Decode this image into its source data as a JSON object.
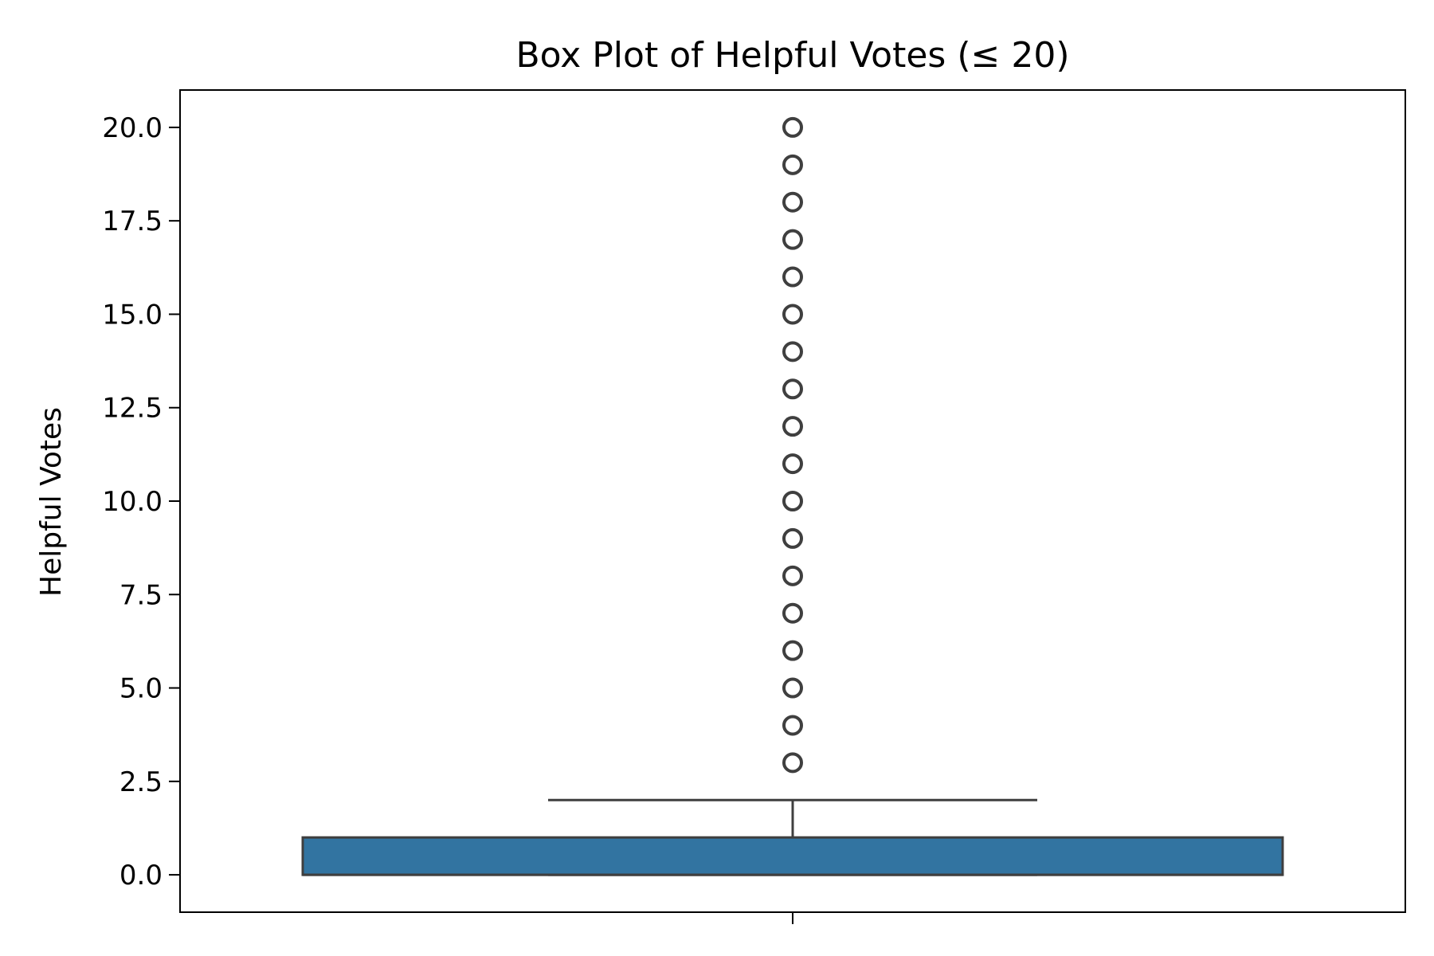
{
  "chart_data": {
    "type": "box",
    "title": "Box Plot of Helpful Votes (≤ 20)",
    "xlabel": "",
    "ylabel": "Helpful Votes",
    "ylim": [
      -1,
      21
    ],
    "yticks": [
      0.0,
      2.5,
      5.0,
      7.5,
      10.0,
      12.5,
      15.0,
      17.5,
      20.0
    ],
    "ytick_labels": [
      "0.0",
      "2.5",
      "5.0",
      "7.5",
      "10.0",
      "12.5",
      "15.0",
      "17.5",
      "20.0"
    ],
    "grid": false,
    "box": {
      "q1": 0,
      "median": 0,
      "q3": 1,
      "whisker_low": 0,
      "whisker_high": 2,
      "outliers": [
        3,
        4,
        5,
        6,
        7,
        8,
        9,
        10,
        11,
        12,
        13,
        14,
        15,
        16,
        17,
        18,
        19,
        20
      ]
    },
    "colors": {
      "box_fill": "#3274a1",
      "line": "#3f3f3f",
      "axes": "#000000"
    }
  }
}
